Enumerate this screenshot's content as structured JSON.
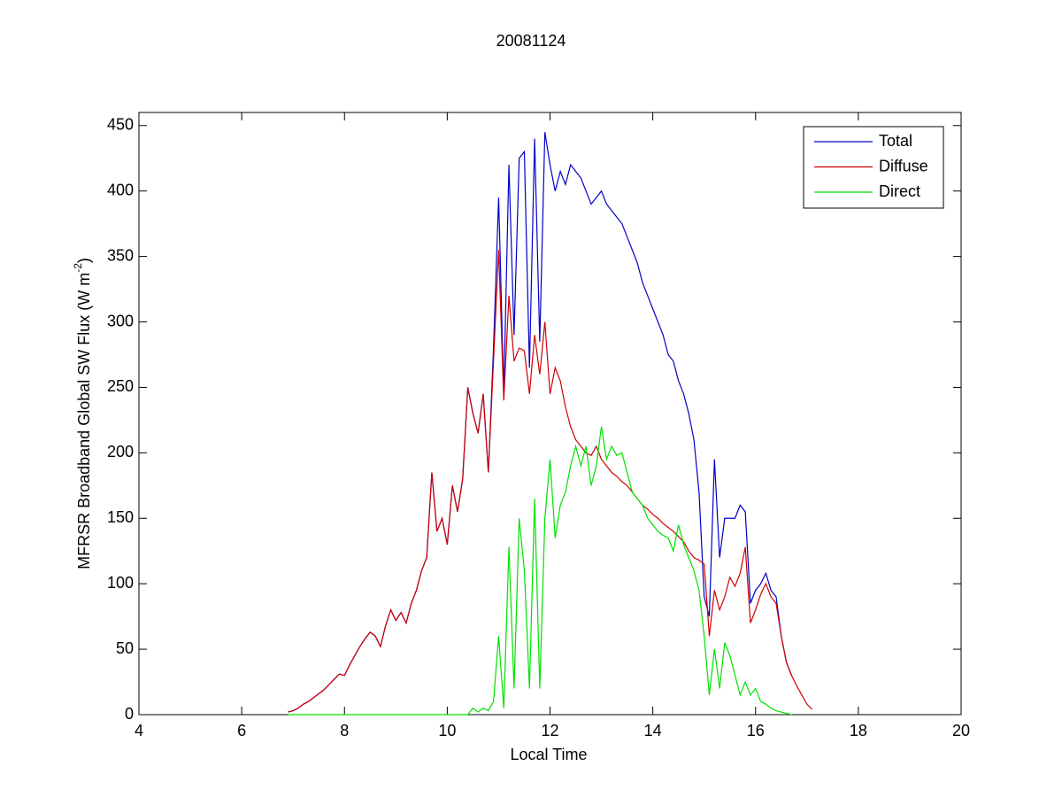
{
  "chart_data": {
    "type": "line",
    "title": "20081124",
    "xlabel": "Local Time",
    "ylabel": [
      "MFRSR Broadband Global SW Flux (W m",
      "-2",
      ")"
    ],
    "x": [
      6.9,
      7,
      7.1,
      7.2,
      7.3,
      7.4,
      7.5,
      7.6,
      7.7,
      7.8,
      7.9,
      8,
      8.1,
      8.2,
      8.3,
      8.4,
      8.5,
      8.6,
      8.7,
      8.8,
      8.9,
      9,
      9.1,
      9.2,
      9.3,
      9.4,
      9.5,
      9.6,
      9.7,
      9.8,
      9.9,
      10,
      10.1,
      10.2,
      10.3,
      10.4,
      10.5,
      10.6,
      10.7,
      10.8,
      10.9,
      11,
      11.1,
      11.2,
      11.3,
      11.4,
      11.5,
      11.6,
      11.7,
      11.8,
      11.9,
      12,
      12.1,
      12.2,
      12.3,
      12.4,
      12.5,
      12.6,
      12.7,
      12.8,
      12.9,
      13,
      13.1,
      13.2,
      13.3,
      13.4,
      13.5,
      13.6,
      13.7,
      13.8,
      13.9,
      14,
      14.1,
      14.2,
      14.3,
      14.4,
      14.5,
      14.6,
      14.7,
      14.8,
      14.9,
      15,
      15.1,
      15.2,
      15.3,
      15.4,
      15.5,
      15.6,
      15.7,
      15.8,
      15.9,
      16,
      16.1,
      16.2,
      16.3,
      16.4,
      16.5,
      16.6,
      16.7,
      16.8,
      16.9,
      17,
      17.1
    ],
    "series": [
      {
        "name": "Total",
        "color": "#0000c8",
        "values": [
          2,
          3,
          5,
          8,
          10,
          13,
          16,
          19,
          23,
          27,
          31,
          30,
          38,
          45,
          52,
          58,
          63,
          60,
          52,
          68,
          80,
          72,
          78,
          70,
          85,
          95,
          110,
          120,
          185,
          140,
          150,
          130,
          175,
          155,
          180,
          250,
          230,
          215,
          245,
          185,
          280,
          395,
          245,
          420,
          290,
          425,
          430,
          265,
          440,
          285,
          445,
          420,
          400,
          415,
          405,
          420,
          415,
          410,
          400,
          390,
          395,
          400,
          390,
          385,
          380,
          375,
          365,
          355,
          345,
          330,
          320,
          310,
          300,
          290,
          275,
          270,
          255,
          245,
          230,
          210,
          170,
          90,
          75,
          195,
          120,
          150,
          150,
          150,
          160,
          155,
          85,
          95,
          100,
          108,
          95,
          90,
          60,
          40,
          30,
          null,
          null,
          null,
          null
        ]
      },
      {
        "name": "Diffuse",
        "color": "#d00000",
        "values": [
          2,
          3,
          5,
          8,
          10,
          13,
          16,
          19,
          23,
          27,
          31,
          30,
          38,
          45,
          52,
          58,
          63,
          60,
          52,
          68,
          80,
          72,
          78,
          70,
          85,
          95,
          110,
          120,
          185,
          140,
          150,
          130,
          175,
          155,
          180,
          250,
          230,
          215,
          245,
          185,
          270,
          355,
          240,
          320,
          270,
          280,
          278,
          245,
          290,
          260,
          300,
          245,
          265,
          255,
          235,
          220,
          210,
          205,
          200,
          198,
          205,
          195,
          190,
          185,
          182,
          178,
          175,
          170,
          165,
          160,
          157,
          153,
          150,
          146,
          143,
          140,
          136,
          132,
          125,
          120,
          118,
          115,
          60,
          95,
          80,
          90,
          105,
          98,
          108,
          128,
          70,
          80,
          92,
          100,
          90,
          85,
          60,
          40,
          30,
          22,
          15,
          8,
          4
        ]
      },
      {
        "name": "Direct",
        "color": "#00e000",
        "values": [
          0,
          0,
          0,
          0,
          0,
          0,
          0,
          0,
          0,
          0,
          0,
          0,
          0,
          0,
          0,
          0,
          0,
          0,
          0,
          0,
          0,
          0,
          0,
          0,
          0,
          0,
          0,
          0,
          0,
          0,
          0,
          0,
          0,
          0,
          0,
          0,
          5,
          2,
          5,
          3,
          10,
          60,
          5,
          128,
          20,
          150,
          110,
          20,
          165,
          20,
          150,
          195,
          135,
          160,
          170,
          190,
          205,
          190,
          205,
          175,
          190,
          220,
          195,
          205,
          198,
          200,
          185,
          170,
          165,
          160,
          150,
          145,
          140,
          137,
          135,
          125,
          145,
          130,
          120,
          110,
          95,
          60,
          15,
          50,
          20,
          55,
          45,
          30,
          15,
          25,
          15,
          20,
          10,
          8,
          5,
          3,
          2,
          1,
          0,
          null,
          null,
          null,
          null
        ]
      }
    ],
    "xlim": [
      4,
      20
    ],
    "xticks": [
      4,
      6,
      8,
      10,
      12,
      14,
      16,
      18,
      20
    ],
    "ylim": [
      0,
      460
    ],
    "yticks": [
      0,
      50,
      100,
      150,
      200,
      250,
      300,
      350,
      400,
      450
    ],
    "legend": "upper right",
    "grid": false
  }
}
